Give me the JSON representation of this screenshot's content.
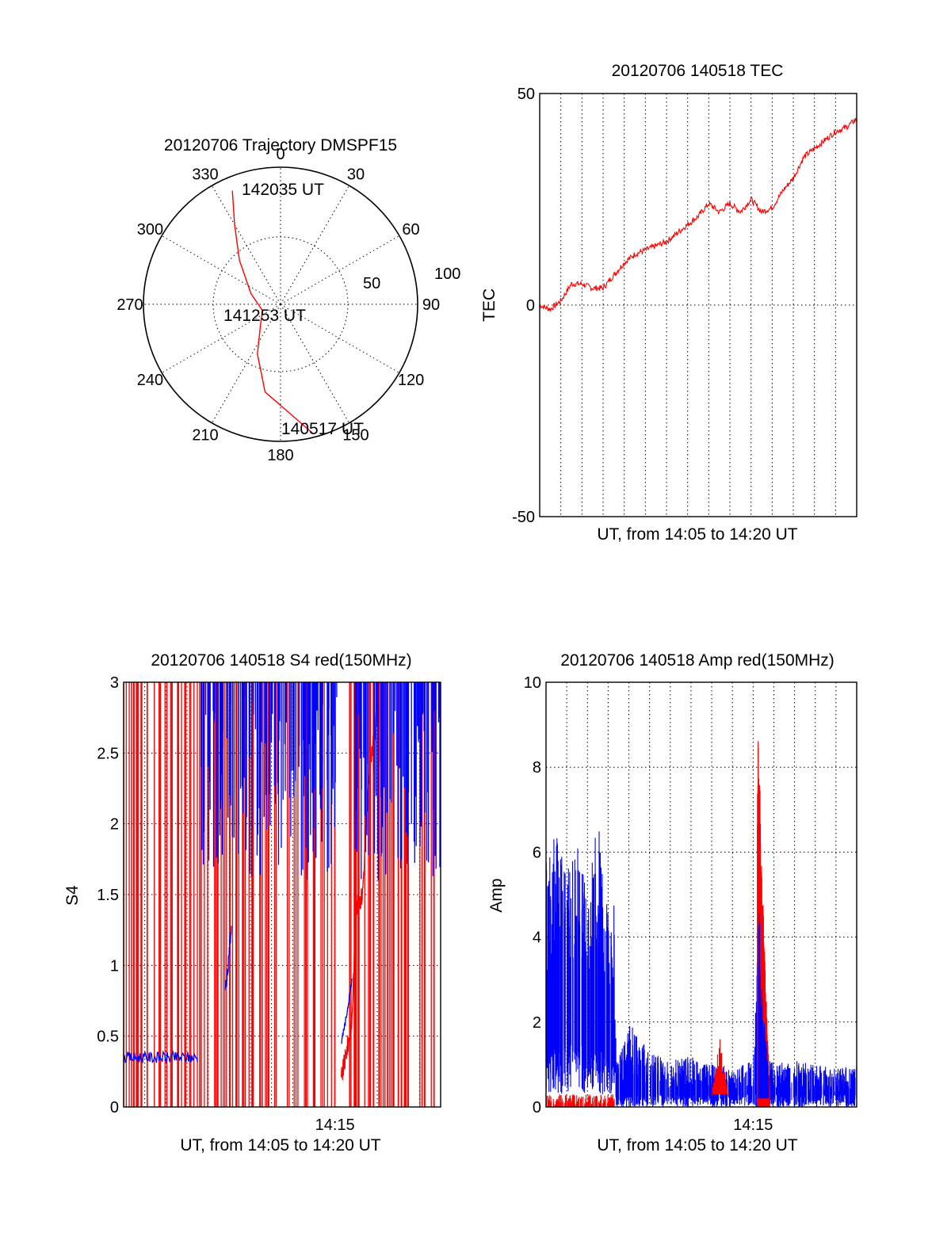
{
  "colors": {
    "red": "#ff0000",
    "blue": "#0000ff",
    "black": "#000000",
    "background": "#ffffff"
  },
  "chart_data": [
    {
      "type": "polar",
      "title": "20120706 Trajectory DMSPF15",
      "angle_labels": [
        "0",
        "30",
        "60",
        "90",
        "120",
        "150",
        "180",
        "210",
        "240",
        "270",
        "300",
        "330"
      ],
      "radius_labels": [
        "50",
        "100"
      ],
      "radius_range": [
        0,
        100
      ],
      "grid": true,
      "series": [
        {
          "color": "#ff0000",
          "azimuth_deg": [
            166,
            190,
            205,
            222,
            252,
            290,
            317,
            330,
            337
          ],
          "radius": [
            97,
            65,
            40,
            22,
            14,
            23,
            44,
            67,
            90
          ]
        }
      ],
      "annotations": [
        {
          "text": "142035 UT",
          "azimuth_deg": 345,
          "radius": 87
        },
        {
          "text": "141253 UT",
          "azimuth_deg": 224,
          "radius": 14
        },
        {
          "text": "140517 UT",
          "azimuth_deg": 167,
          "radius": 97
        }
      ]
    },
    {
      "type": "line",
      "title": "20120706 140518 TEC",
      "xlabel": "UT, from 14:05 to 14:20 UT",
      "ylabel": "TEC",
      "xlim": [
        0,
        15
      ],
      "ylim": [
        -50,
        50
      ],
      "yticks": [
        "-50",
        "0",
        "50"
      ],
      "grid": true,
      "series": [
        {
          "color": "#ff0000",
          "x": [
            0,
            0.5,
            1.0,
            1.5,
            2.0,
            2.5,
            3.0,
            3.5,
            4.0,
            4.5,
            5.0,
            5.5,
            6.0,
            6.5,
            7.0,
            7.5,
            8.0,
            8.5,
            9.0,
            9.5,
            10.0,
            10.5,
            11.0,
            11.5,
            12.0,
            12.5,
            13.0,
            13.5,
            14.0,
            14.5,
            15.0
          ],
          "y": [
            0,
            -1,
            1,
            5,
            5,
            4,
            4,
            7,
            10,
            12,
            13,
            14,
            15,
            17,
            19,
            21,
            24,
            22,
            24,
            22,
            25,
            22,
            23,
            27,
            30,
            35,
            37,
            39,
            41,
            42,
            44
          ]
        }
      ]
    },
    {
      "type": "line",
      "title": "20120706 140518 S4 red(150MHz)",
      "xlabel": "UT, from 14:05 to 14:20 UT",
      "ylabel": "S4",
      "xlim": [
        0,
        15
      ],
      "ylim": [
        0,
        3
      ],
      "yticks": [
        "0",
        "0.5",
        "1",
        "1.5",
        "2",
        "2.5",
        "3"
      ],
      "xtick_labels": [
        {
          "x": 10,
          "label": "14:15"
        }
      ],
      "grid": true,
      "series": [
        {
          "color": "#ff0000",
          "pattern": "dense vertical spikes 0 to 3",
          "x": [
            10.3,
            10.5,
            10.8,
            11.0,
            11.3,
            11.6,
            12.0
          ],
          "y": [
            0.2,
            0.35,
            0.6,
            1.4,
            1.5,
            2.3,
            2.8
          ]
        },
        {
          "color": "#0000ff",
          "x": [
            0,
            0.5,
            1.0,
            1.5,
            2.0,
            2.5,
            3.0,
            3.5,
            4.0,
            4.5,
            4.8,
            5.0,
            10.3,
            10.5,
            10.8
          ],
          "y": [
            0.33,
            0.36,
            0.35,
            0.36,
            0.35,
            0.35,
            0.36,
            2.3,
            2.4,
            1.0,
            0.8,
            1.3,
            0.45,
            0.6,
            0.9
          ]
        }
      ]
    },
    {
      "type": "line",
      "title": "20120706 140518 Amp red(150MHz)",
      "xlabel": "UT, from 14:05 to 14:20 UT",
      "ylabel": "Amp",
      "xlim": [
        0,
        15
      ],
      "ylim": [
        0,
        10
      ],
      "yticks": [
        "0",
        "2",
        "4",
        "6",
        "8",
        "10"
      ],
      "xtick_labels": [
        {
          "x": 10,
          "label": "14:15"
        }
      ],
      "grid": true,
      "series": [
        {
          "color": "#0000ff",
          "pattern": "noisy band",
          "x": [
            0,
            0.5,
            1.0,
            1.5,
            2.0,
            2.5,
            3.0,
            3.3,
            3.4,
            4.0,
            5.0,
            6.0,
            7.0,
            8.0,
            9.0,
            10.0,
            10.3,
            10.5,
            10.8,
            11.0,
            12.0,
            13.0,
            14.0,
            15.0
          ],
          "y": [
            5.8,
            6.5,
            5.5,
            6.2,
            5.0,
            6.8,
            4.5,
            4.8,
            1.0,
            2.0,
            1.3,
            1.1,
            1.2,
            1.0,
            0.9,
            1.1,
            4.8,
            3.0,
            1.2,
            1.0,
            1.1,
            1.0,
            0.9,
            1.0
          ]
        },
        {
          "color": "#ff0000",
          "x": [
            0,
            1.0,
            2.0,
            3.3,
            8.0,
            8.4,
            8.8,
            10.0,
            10.25,
            10.4,
            10.6,
            10.8
          ],
          "y": [
            0.2,
            0.2,
            0.2,
            0.2,
            0.4,
            1.6,
            0.4,
            1.0,
            9.1,
            6.0,
            3.0,
            0.5
          ]
        }
      ]
    }
  ]
}
